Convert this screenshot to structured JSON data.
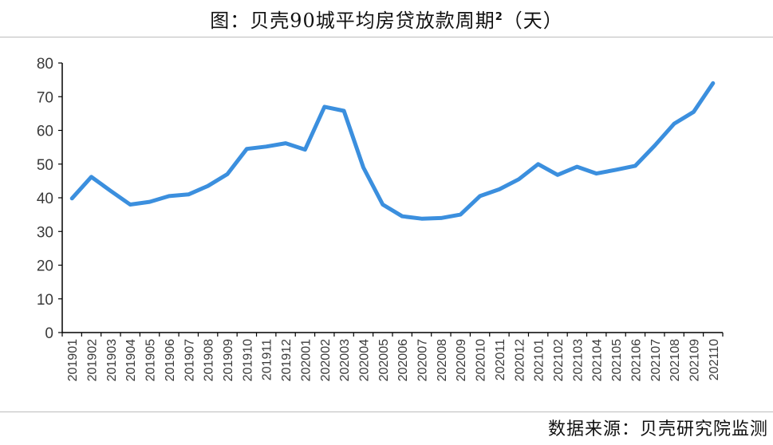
{
  "header": {
    "title": "图：贝壳90城平均房贷放款周期",
    "title_sup": "2",
    "title_unit": "（天）"
  },
  "footer": {
    "source": "数据来源：贝壳研究院监测"
  },
  "colors": {
    "line": "#3b8fde",
    "axis": "#000000",
    "text": "#3a3a3a"
  },
  "chart_data": {
    "type": "line",
    "title": "图：贝壳90城平均房贷放款周期²（天）",
    "xlabel": "",
    "ylabel": "",
    "ylim": [
      0,
      80
    ],
    "yticks": [
      0,
      10,
      20,
      30,
      40,
      50,
      60,
      70,
      80
    ],
    "grid": false,
    "legend": "none",
    "categories": [
      "201901",
      "201902",
      "201903",
      "201904",
      "201905",
      "201906",
      "201907",
      "201908",
      "201909",
      "201910",
      "201911",
      "201912",
      "202001",
      "202002",
      "202003",
      "202004",
      "202005",
      "202006",
      "202007",
      "202008",
      "202009",
      "202010",
      "202011",
      "202012",
      "202101",
      "202102",
      "202103",
      "202104",
      "202105",
      "202106",
      "202107",
      "202108",
      "202109",
      "202110"
    ],
    "series": [
      {
        "values": [
          39.8,
          46.2,
          42.0,
          38.0,
          38.8,
          40.5,
          41.0,
          43.5,
          47.0,
          54.5,
          55.2,
          56.2,
          54.3,
          67.0,
          65.8,
          49.0,
          38.0,
          34.5,
          33.8,
          34.0,
          35.0,
          40.5,
          42.5,
          45.5,
          50.0,
          46.8,
          49.2,
          47.2,
          48.3,
          49.5,
          55.5,
          62.0,
          65.5,
          74.0
        ]
      }
    ]
  }
}
